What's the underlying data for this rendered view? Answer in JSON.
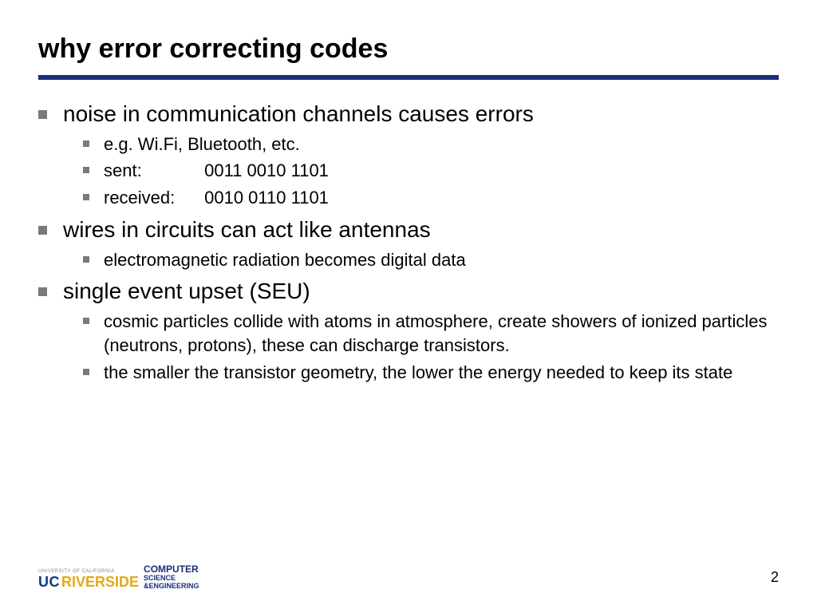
{
  "title": "why error correcting codes",
  "colors": {
    "rule": "#1a2e7a",
    "bullet": "#7a7a7a",
    "uc": "#0a3a8a",
    "riverside": "#e6a817",
    "text": "#000000",
    "background": "#ffffff"
  },
  "font_sizes": {
    "title": 34,
    "level1": 28,
    "level2": 22,
    "pagenum": 18
  },
  "bullets": [
    {
      "text": "noise in communication channels causes errors",
      "children": [
        {
          "text": "e.g. Wi.Fi, Bluetooth, etc."
        },
        {
          "label": "sent:",
          "value": "0011 0010 1101"
        },
        {
          "label": "received:",
          "value": "0010 0110 1101"
        }
      ]
    },
    {
      "text": "wires in circuits can act like antennas",
      "children": [
        {
          "text": "electromagnetic radiation becomes digital data"
        }
      ]
    },
    {
      "text": "single event upset (SEU)",
      "children": [
        {
          "text": "cosmic particles collide with atoms in atmosphere, create showers of ionized particles (neutrons, protons), these can discharge transistors."
        },
        {
          "text": "the smaller the transistor geometry, the lower the energy needed to keep its state"
        }
      ]
    }
  ],
  "footer": {
    "brand_top": "UNIVERSITY OF CALIFORNIA",
    "brand_uc": "UC",
    "brand_riverside": "RIVERSIDE",
    "dept_line1": "COMPUTER",
    "dept_line2a": "SCIENCE",
    "dept_line2b": "&ENGINEERING",
    "page_number": "2"
  }
}
